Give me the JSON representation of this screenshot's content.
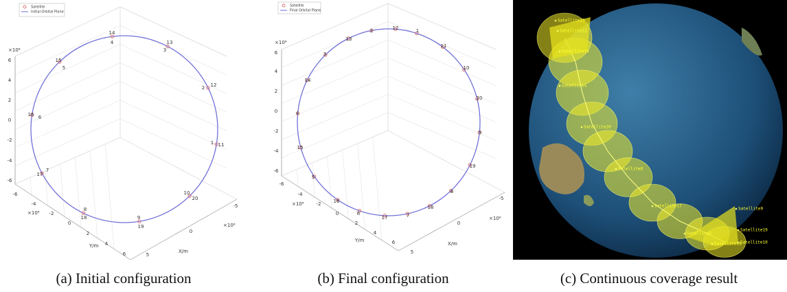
{
  "figure": {
    "panels": [
      {
        "caption": "(a) Initial configuration",
        "legend": [
          "Satellite",
          "Initial Orbital Plane"
        ],
        "exponent": "×10⁶",
        "axis_labels": {
          "x": "X/m",
          "y": "Y/m"
        },
        "z_ticks": [
          6,
          4,
          2,
          0,
          -2,
          -4,
          -6
        ],
        "y_ticks": [
          -6,
          -4,
          -2,
          0,
          2,
          4,
          6
        ],
        "x_ticks": [
          -5,
          0,
          5
        ],
        "satellite_labels": [
          "14",
          "4",
          "13",
          "3",
          "12",
          "2",
          "11",
          "1",
          "10",
          "20",
          "9",
          "19",
          "8",
          "18",
          "7",
          "17",
          "16",
          "6",
          "15",
          "5"
        ]
      },
      {
        "caption": "(b) Final configuration",
        "legend": [
          "Satellite",
          "Final Orbital Plane"
        ],
        "exponent": "×10⁶",
        "axis_labels": {
          "x": "X/m",
          "y": "Y/m"
        },
        "z_ticks": [
          6,
          4,
          2,
          0,
          -2,
          -4,
          -6
        ],
        "y_ticks": [
          -6,
          -4,
          -2,
          0,
          2,
          4,
          6
        ],
        "x_ticks": [
          -5,
          0,
          5
        ],
        "satellite_labels": [
          "12",
          "2",
          "1",
          "13",
          "11",
          "3",
          "10",
          "14",
          "20",
          "4",
          "9",
          "15",
          "19",
          "5",
          "8",
          "16",
          "18",
          "6",
          "17",
          "7"
        ]
      },
      {
        "caption": "(c) Continuous coverage result",
        "satellite_labels": [
          "Satellite13",
          "Satellite12",
          "Satellite14",
          "Satellite4",
          "Satellite20",
          "Satellite8",
          "Satellite17",
          "Satellite9",
          "Satellite19",
          "Satellite2",
          "Satellite18",
          "Satellite10"
        ]
      }
    ]
  }
}
